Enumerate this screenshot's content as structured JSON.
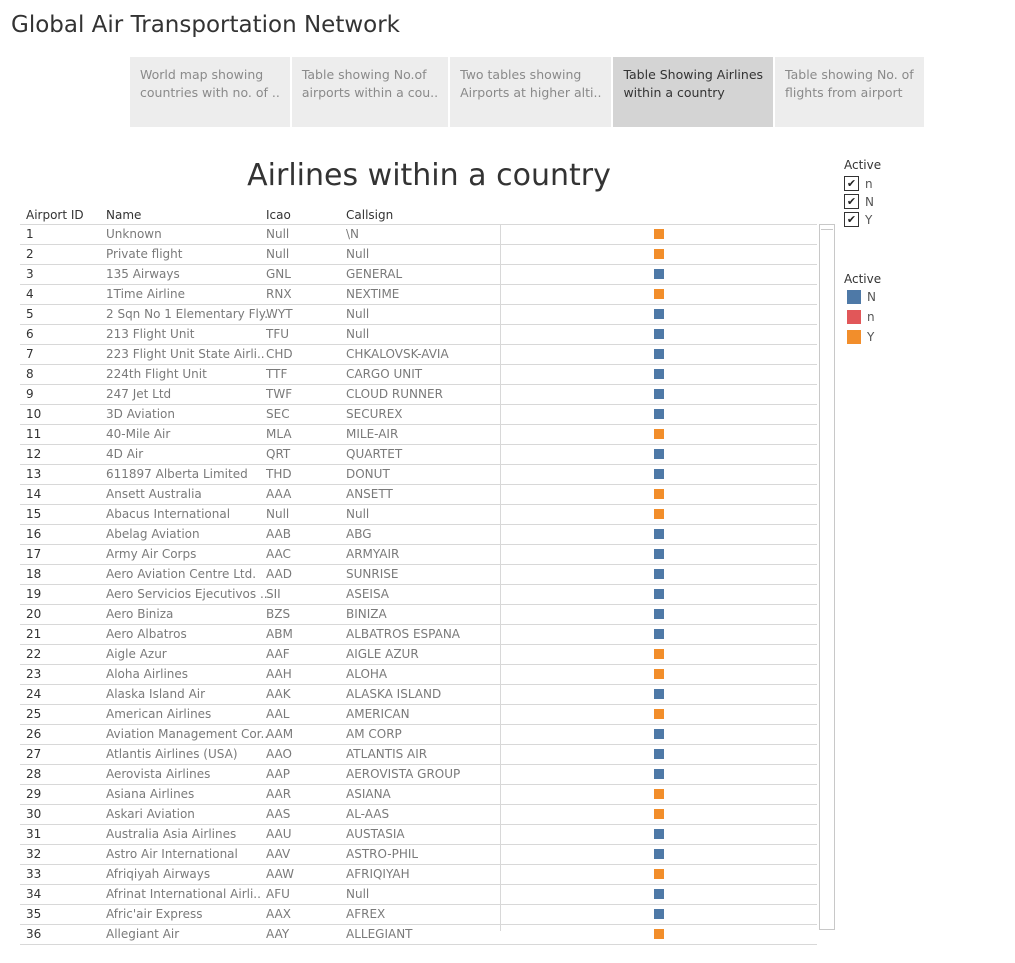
{
  "dashboard": {
    "title": "Global Air Transportation Network"
  },
  "tabs": [
    {
      "line1": "World map showing",
      "line2": "countries with no. of ..",
      "active": false
    },
    {
      "line1": "Table showing No.of",
      "line2": "airports within a cou..",
      "active": false
    },
    {
      "line1": "Two tables showing",
      "line2": "Airports at higher alti..",
      "active": false
    },
    {
      "line1": "Table Showing Airlines",
      "line2": "within a country",
      "active": true
    },
    {
      "line1": "Table showing No. of",
      "line2": "flights from airport",
      "active": false
    }
  ],
  "sheet": {
    "title": "Airlines within a country",
    "columns": {
      "id": "Airport ID",
      "name": "Name",
      "icao": "Icao",
      "callsign": "Callsign"
    }
  },
  "rows": [
    {
      "id": "1",
      "name": "Unknown",
      "icao": "Null",
      "callsign": "\\N",
      "active": "Y"
    },
    {
      "id": "2",
      "name": "Private flight",
      "icao": "Null",
      "callsign": "Null",
      "active": "Y"
    },
    {
      "id": "3",
      "name": "135 Airways",
      "icao": "GNL",
      "callsign": "GENERAL",
      "active": "N"
    },
    {
      "id": "4",
      "name": "1Time Airline",
      "icao": "RNX",
      "callsign": "NEXTIME",
      "active": "Y"
    },
    {
      "id": "5",
      "name": "2 Sqn No 1 Elementary Fly..",
      "icao": "WYT",
      "callsign": "Null",
      "active": "N"
    },
    {
      "id": "6",
      "name": "213 Flight Unit",
      "icao": "TFU",
      "callsign": "Null",
      "active": "N"
    },
    {
      "id": "7",
      "name": "223 Flight Unit State Airli..",
      "icao": "CHD",
      "callsign": "CHKALOVSK-AVIA",
      "active": "N"
    },
    {
      "id": "8",
      "name": "224th Flight Unit",
      "icao": "TTF",
      "callsign": "CARGO UNIT",
      "active": "N"
    },
    {
      "id": "9",
      "name": "247 Jet Ltd",
      "icao": "TWF",
      "callsign": "CLOUD RUNNER",
      "active": "N"
    },
    {
      "id": "10",
      "name": "3D Aviation",
      "icao": "SEC",
      "callsign": "SECUREX",
      "active": "N"
    },
    {
      "id": "11",
      "name": "40-Mile Air",
      "icao": "MLA",
      "callsign": "MILE-AIR",
      "active": "Y"
    },
    {
      "id": "12",
      "name": "4D Air",
      "icao": "QRT",
      "callsign": "QUARTET",
      "active": "N"
    },
    {
      "id": "13",
      "name": "611897 Alberta Limited",
      "icao": "THD",
      "callsign": "DONUT",
      "active": "N"
    },
    {
      "id": "14",
      "name": "Ansett Australia",
      "icao": "AAA",
      "callsign": "ANSETT",
      "active": "Y"
    },
    {
      "id": "15",
      "name": "Abacus International",
      "icao": "Null",
      "callsign": "Null",
      "active": "Y"
    },
    {
      "id": "16",
      "name": "Abelag Aviation",
      "icao": "AAB",
      "callsign": "ABG",
      "active": "N"
    },
    {
      "id": "17",
      "name": "Army Air Corps",
      "icao": "AAC",
      "callsign": "ARMYAIR",
      "active": "N"
    },
    {
      "id": "18",
      "name": "Aero Aviation Centre Ltd.",
      "icao": "AAD",
      "callsign": "SUNRISE",
      "active": "N"
    },
    {
      "id": "19",
      "name": "Aero Servicios Ejecutivos ..",
      "icao": "SII",
      "callsign": "ASEISA",
      "active": "N"
    },
    {
      "id": "20",
      "name": "Aero Biniza",
      "icao": "BZS",
      "callsign": "BINIZA",
      "active": "N"
    },
    {
      "id": "21",
      "name": "Aero Albatros",
      "icao": "ABM",
      "callsign": "ALBATROS ESPANA",
      "active": "N"
    },
    {
      "id": "22",
      "name": "Aigle Azur",
      "icao": "AAF",
      "callsign": "AIGLE AZUR",
      "active": "Y"
    },
    {
      "id": "23",
      "name": "Aloha Airlines",
      "icao": "AAH",
      "callsign": "ALOHA",
      "active": "Y"
    },
    {
      "id": "24",
      "name": "Alaska Island Air",
      "icao": "AAK",
      "callsign": "ALASKA ISLAND",
      "active": "N"
    },
    {
      "id": "25",
      "name": "American Airlines",
      "icao": "AAL",
      "callsign": "AMERICAN",
      "active": "Y"
    },
    {
      "id": "26",
      "name": "Aviation Management Cor..",
      "icao": "AAM",
      "callsign": "AM CORP",
      "active": "N"
    },
    {
      "id": "27",
      "name": "Atlantis Airlines (USA)",
      "icao": "AAO",
      "callsign": "ATLANTIS AIR",
      "active": "N"
    },
    {
      "id": "28",
      "name": "Aerovista Airlines",
      "icao": "AAP",
      "callsign": "AEROVISTA GROUP",
      "active": "N"
    },
    {
      "id": "29",
      "name": "Asiana Airlines",
      "icao": "AAR",
      "callsign": "ASIANA",
      "active": "Y"
    },
    {
      "id": "30",
      "name": "Askari Aviation",
      "icao": "AAS",
      "callsign": "AL-AAS",
      "active": "Y"
    },
    {
      "id": "31",
      "name": "Australia Asia Airlines",
      "icao": "AAU",
      "callsign": "AUSTASIA",
      "active": "N"
    },
    {
      "id": "32",
      "name": "Astro Air International",
      "icao": "AAV",
      "callsign": "ASTRO-PHIL",
      "active": "N"
    },
    {
      "id": "33",
      "name": "Afriqiyah Airways",
      "icao": "AAW",
      "callsign": "AFRIQIYAH",
      "active": "Y"
    },
    {
      "id": "34",
      "name": "Afrinat International Airli..",
      "icao": "AFU",
      "callsign": "Null",
      "active": "N"
    },
    {
      "id": "35",
      "name": "Afric'air Express",
      "icao": "AAX",
      "callsign": "AFREX",
      "active": "N"
    },
    {
      "id": "36",
      "name": "Allegiant Air",
      "icao": "AAY",
      "callsign": "ALLEGIANT",
      "active": "Y"
    }
  ],
  "filter": {
    "title": "Active",
    "items": [
      {
        "label": "n",
        "checked": true,
        "mark": "✔"
      },
      {
        "label": "N",
        "checked": true,
        "mark": "✔"
      },
      {
        "label": "Y",
        "checked": true,
        "mark": "✔"
      }
    ]
  },
  "legend": {
    "title": "Active",
    "items": [
      {
        "label": "N",
        "color": "#4e79a7"
      },
      {
        "label": "n",
        "color": "#e15759"
      },
      {
        "label": "Y",
        "color": "#f28e2b"
      }
    ]
  },
  "colors": {
    "N": "#4e79a7",
    "n": "#e15759",
    "Y": "#f28e2b"
  }
}
